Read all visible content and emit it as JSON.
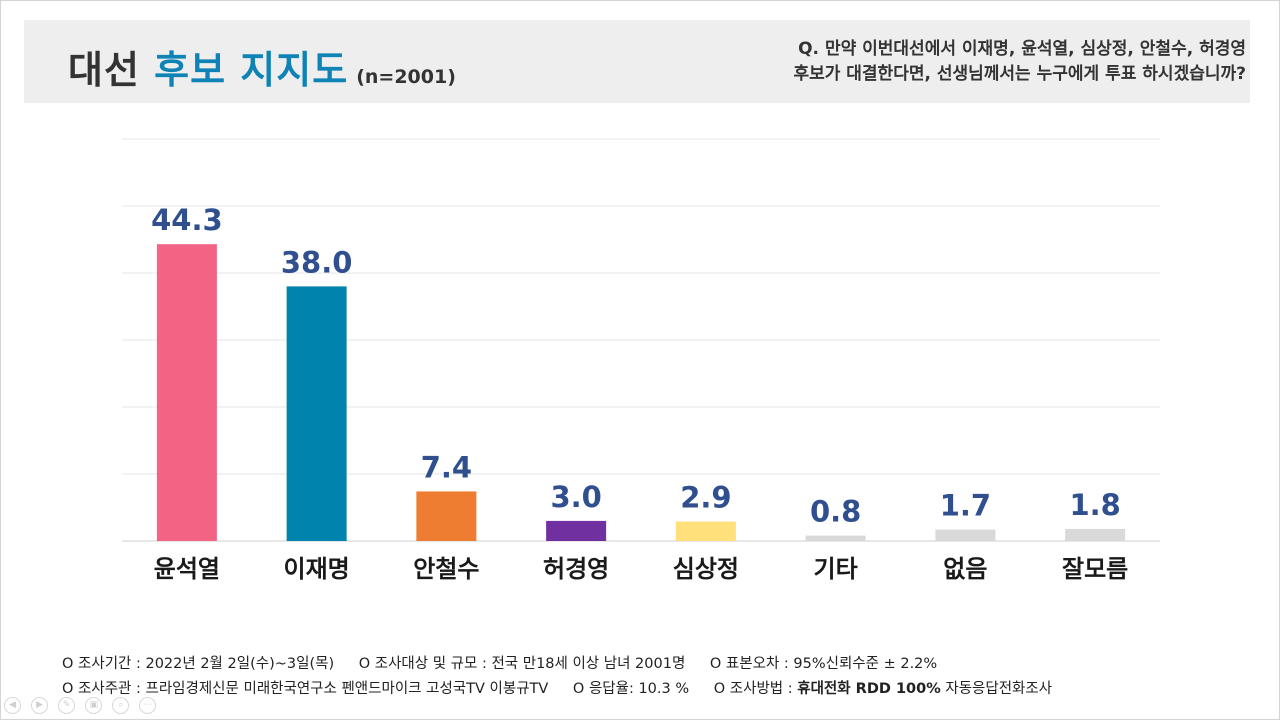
{
  "header": {
    "title_plain": "대선 ",
    "title_accent": "후보 지지도",
    "sample": "(n=2001)",
    "question_line1": "Q. 만약 이번대선에서 이재명, 윤석열, 심상정, 안철수, 허경영",
    "question_line2": "후보가 대결한다면, 선생님께서는 누구에게 투표 하시겠습니까?"
  },
  "chart_data": {
    "type": "bar",
    "categories": [
      "윤석열",
      "이재명",
      "안철수",
      "허경영",
      "심상정",
      "기타",
      "없음",
      "잘모름"
    ],
    "values": [
      44.3,
      38.0,
      7.4,
      3.0,
      2.9,
      0.8,
      1.7,
      1.8
    ],
    "value_labels": [
      "44.3",
      "38.0",
      "7.4",
      "3.0",
      "2.9",
      "0.8",
      "1.7",
      "1.8"
    ],
    "colors": [
      "#f26384",
      "#0083ad",
      "#ee7d31",
      "#7030a0",
      "#ffe07a",
      "#d9d9d9",
      "#d9d9d9",
      "#d9d9d9"
    ],
    "label_color": "#2f4f8f",
    "ylim": [
      0,
      60
    ],
    "grid": true,
    "gridlines": [
      0,
      10,
      20,
      30,
      40,
      50,
      60
    ]
  },
  "footer": {
    "row1": [
      "O 조사기간 : 2022년 2월 2일(수)~3일(목)",
      "O 조사대상 및 규모 : 전국 만18세 이상 남녀 2001명",
      "O 표본오차 : 95%신뢰수준 ± 2.2%"
    ],
    "row2": [
      "O 조사주관 : 프라임경제신문 미래한국연구소 펜앤드마이크 고성국TV 이봉규TV",
      "O 응답율: 10.3 %"
    ],
    "method_prefix": "O 조사방법 : ",
    "method_bold": "휴대전화 RDD 100%",
    "method_suffix": " 자동응답전화조사"
  },
  "controls": [
    "◀",
    "▶",
    "✎",
    "▣",
    "⌕",
    "⋯"
  ]
}
